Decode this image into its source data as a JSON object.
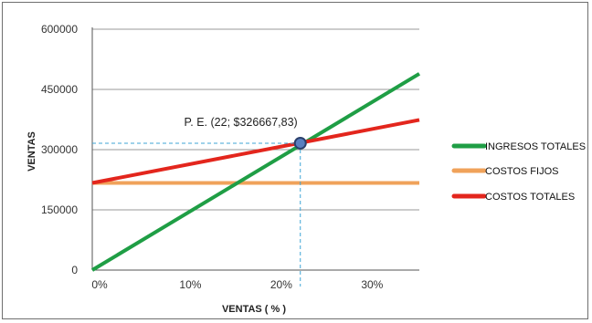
{
  "chart_data": {
    "type": "line",
    "xlabel": "VENTAS ( % )",
    "ylabel": "VENTAS",
    "xlim": [
      0,
      36
    ],
    "ylim": [
      0,
      600000
    ],
    "x_ticks": [
      0,
      10,
      20,
      30
    ],
    "x_tick_labels": [
      "0%",
      "10%",
      "20%",
      "30%"
    ],
    "y_ticks": [
      0,
      150000,
      300000,
      450000,
      600000
    ],
    "y_tick_labels": [
      "0",
      "150000",
      "300000",
      "450000",
      "600000"
    ],
    "grid": "horizontal",
    "legend_position": "right",
    "series": [
      {
        "name": "INGRESOS TOTALES",
        "color": "#1f9e45",
        "x": [
          0,
          36
        ],
        "y": [
          0,
          489000
        ]
      },
      {
        "name": "COSTOS FIJOS",
        "color": "#f0a25a",
        "x": [
          0,
          36
        ],
        "y": [
          217000,
          217000
        ]
      },
      {
        "name": "COSTOS TOTALES",
        "color": "#e3261d",
        "x": [
          0,
          36
        ],
        "y": [
          217000,
          374000
        ]
      }
    ],
    "annotation": {
      "text": "P. E. (22; $326667,83)",
      "x": 22.9,
      "y": 316000,
      "marker_color": "#5a7fbf",
      "guide_color": "#3fa6d6"
    }
  }
}
